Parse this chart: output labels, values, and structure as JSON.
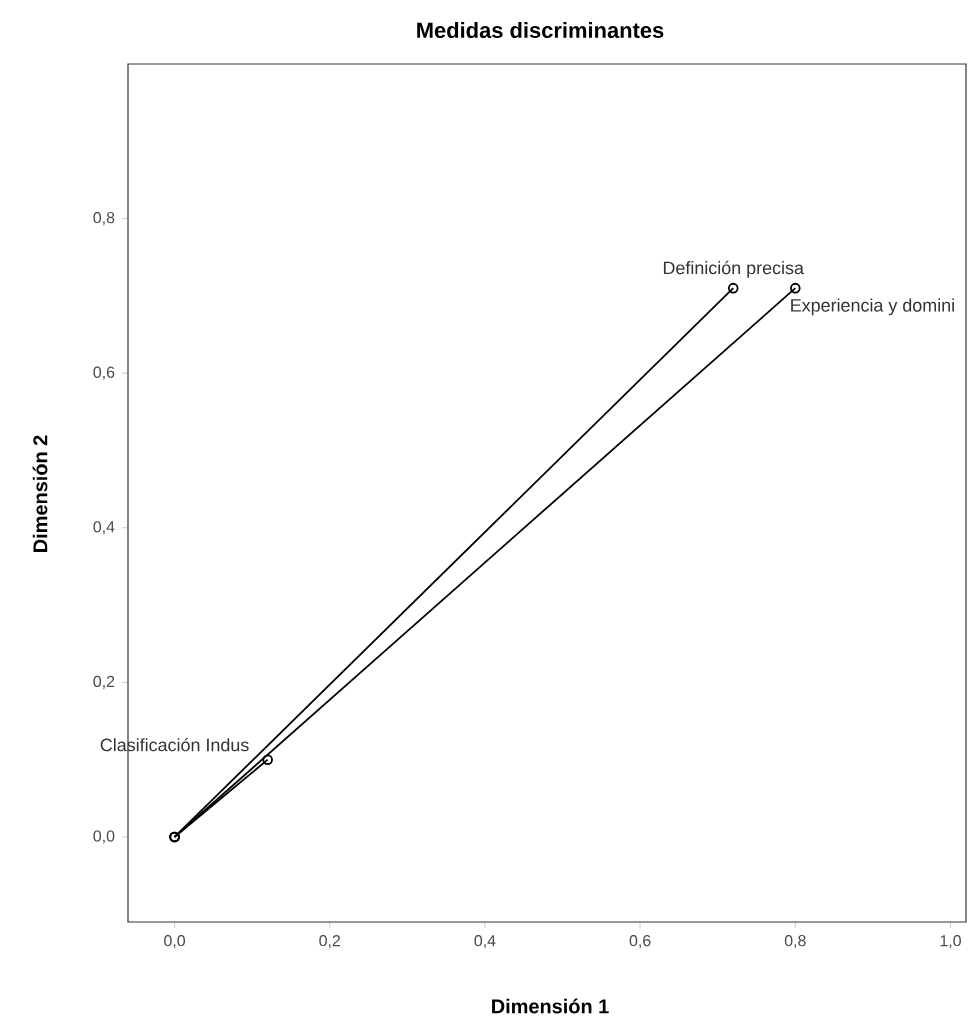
{
  "chart_data": {
    "type": "line",
    "title": "Medidas discriminantes",
    "xlabel": "Dimensión 1",
    "ylabel": "Dimensión 2",
    "series": [
      {
        "name": "Definición precisa",
        "color": "#000000",
        "x": [
          0,
          0.72
        ],
        "values": [
          0,
          0.71
        ]
      },
      {
        "name": "Experiencia y domini",
        "color": "#000000",
        "x": [
          0,
          0.8
        ],
        "values": [
          0,
          0.71
        ]
      },
      {
        "name": "Clasificación Indus",
        "color": "#000000",
        "x": [
          0,
          0.12
        ],
        "values": [
          0,
          0.1
        ]
      }
    ],
    "xlim": [
      -0.06,
      1.02
    ],
    "ylim": [
      -0.11,
      1.0
    ],
    "xticks": [
      {
        "value": 0,
        "label": "0,0"
      },
      {
        "value": 0.2,
        "label": "0,2"
      },
      {
        "value": 0.4,
        "label": "0,4"
      },
      {
        "value": 0.6,
        "label": "0,6"
      },
      {
        "value": 0.8,
        "label": "0,8"
      },
      {
        "value": 1.0,
        "label": "1,0"
      }
    ],
    "yticks": [
      {
        "value": 0,
        "label": "0,0"
      },
      {
        "value": 0.2,
        "label": "0,2"
      },
      {
        "value": 0.4,
        "label": "0,4"
      },
      {
        "value": 0.6,
        "label": "0,6"
      },
      {
        "value": 0.8,
        "label": "0,8"
      }
    ],
    "grid": false,
    "marker": "circle",
    "line_style": "solid"
  }
}
